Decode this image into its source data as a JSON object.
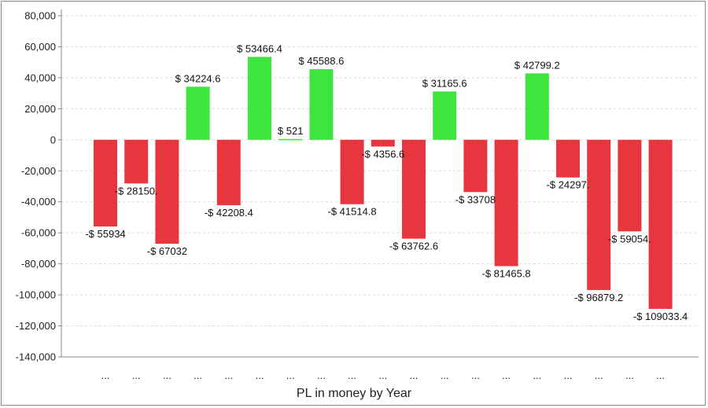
{
  "chart_data": {
    "type": "bar",
    "title": "",
    "xlabel": "PL in money by Year",
    "ylabel": "",
    "ylim": [
      -140000,
      80000
    ],
    "yticks": [
      80000,
      60000,
      40000,
      20000,
      0,
      -20000,
      -40000,
      -60000,
      -80000,
      -100000,
      -120000,
      -140000
    ],
    "ytick_labels": [
      "80,000",
      "60,000",
      "40,000",
      "20,000",
      "0",
      "-20,000",
      "-40,000",
      "-60,000",
      "-80,000",
      "-100,000",
      "-120,000",
      "-140,000"
    ],
    "grid": true,
    "categories": [
      "...",
      "...",
      "...",
      "...",
      "...",
      "...",
      "...",
      "...",
      "...",
      "...",
      "...",
      "...",
      "...",
      "...",
      "...",
      "...",
      "...",
      "...",
      "..."
    ],
    "values": [
      -55934,
      -28150,
      -67032,
      34224.6,
      -42208.4,
      53466.4,
      521,
      45588.6,
      -41514.8,
      -4356.6,
      -63762.6,
      31165.6,
      -33708,
      -81465.8,
      42799.2,
      -24297,
      -96879.2,
      -59054,
      -109033.4
    ],
    "data_labels": [
      "-$ 55934",
      "-$ 28150.",
      "-$ 67032",
      "$ 34224.6",
      "-$ 42208.4",
      "$ 53466.4",
      "$ 521",
      "$ 45588.6",
      "-$ 41514.8",
      "-$ 4356.6",
      "-$ 63762.6",
      "$ 31165.6",
      "-$ 33708",
      "-$ 81465.8",
      "$ 42799.2",
      "-$ 24297.",
      "-$ 96879.2",
      "-$ 59054.",
      "-$ 109033.4"
    ],
    "colors": {
      "positive": "#3de53d",
      "negative": "#e8363f",
      "grid": "#d9d9d9",
      "axis": "#888888"
    }
  }
}
